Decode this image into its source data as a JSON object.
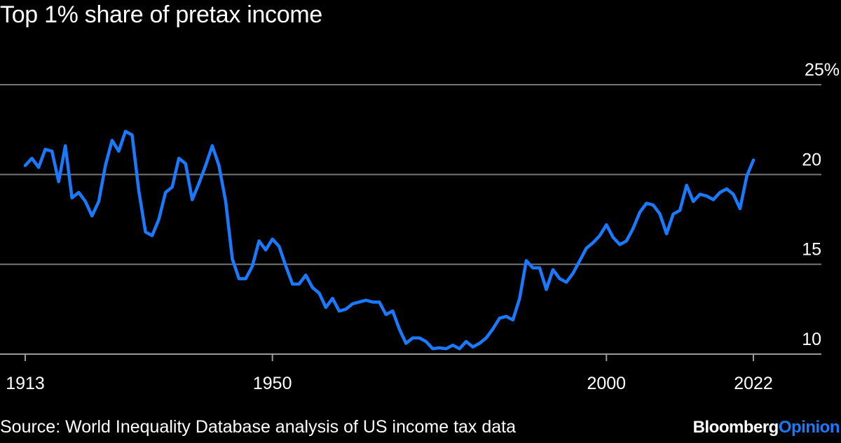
{
  "title": "Top 1% share of pretax income",
  "source": "Source: World Inequality Database analysis of US income tax data",
  "brand": {
    "name": "Bloomberg",
    "suffix": "Opinion"
  },
  "colors": {
    "background": "#000000",
    "line": "#1a7aff",
    "grid": "#777777",
    "text": "#ffffff"
  },
  "chart_data": {
    "type": "line",
    "title": "Top 1% share of pretax income",
    "ylim": [
      10,
      25
    ],
    "xlim": [
      1913,
      2022
    ],
    "y_ticks": [
      {
        "value": 25,
        "label": "25%"
      },
      {
        "value": 20,
        "label": "20"
      },
      {
        "value": 15,
        "label": "15"
      },
      {
        "value": 10,
        "label": "10"
      }
    ],
    "x_ticks": [
      {
        "value": 1913,
        "label": "1913"
      },
      {
        "value": 1950,
        "label": "1950"
      },
      {
        "value": 2000,
        "label": "2000"
      },
      {
        "value": 2022,
        "label": "2022"
      }
    ],
    "grid": true,
    "series": [
      {
        "x": [
          1913,
          1914,
          1915,
          1916,
          1917,
          1918,
          1919,
          1920,
          1921,
          1922,
          1923,
          1924,
          1925,
          1926,
          1927,
          1928,
          1929,
          1930,
          1931,
          1932,
          1933,
          1934,
          1935,
          1936,
          1937,
          1938,
          1939,
          1940,
          1941,
          1942,
          1943,
          1944,
          1945,
          1946,
          1947,
          1948,
          1949,
          1950,
          1951,
          1952,
          1953,
          1954,
          1955,
          1956,
          1957,
          1958,
          1959,
          1960,
          1961,
          1962,
          1963,
          1964,
          1965,
          1966,
          1967,
          1968,
          1969,
          1970,
          1971,
          1972,
          1973,
          1974,
          1975,
          1976,
          1977,
          1978,
          1979,
          1980,
          1981,
          1982,
          1983,
          1984,
          1985,
          1986,
          1987,
          1988,
          1989,
          1990,
          1991,
          1992,
          1993,
          1994,
          1995,
          1996,
          1997,
          1998,
          1999,
          2000,
          2001,
          2002,
          2003,
          2004,
          2005,
          2006,
          2007,
          2008,
          2009,
          2010,
          2011,
          2012,
          2013,
          2014,
          2015,
          2016,
          2017,
          2018,
          2019,
          2020,
          2021,
          2022
        ],
        "values": [
          20.5,
          20.9,
          20.4,
          21.4,
          21.3,
          19.6,
          21.6,
          18.7,
          19.0,
          18.5,
          17.7,
          18.5,
          20.5,
          21.9,
          21.3,
          22.4,
          22.2,
          19.1,
          16.8,
          16.6,
          17.5,
          19.0,
          19.3,
          20.9,
          20.6,
          18.6,
          19.5,
          20.5,
          21.6,
          20.5,
          18.5,
          15.3,
          14.2,
          14.2,
          14.9,
          16.3,
          15.8,
          16.4,
          16.0,
          14.9,
          13.9,
          13.9,
          14.4,
          13.7,
          13.4,
          12.6,
          13.1,
          12.4,
          12.5,
          12.8,
          12.9,
          13.0,
          12.9,
          12.9,
          12.2,
          12.4,
          11.4,
          10.6,
          10.9,
          10.9,
          10.7,
          10.3,
          10.35,
          10.3,
          10.5,
          10.3,
          10.7,
          10.4,
          10.6,
          10.9,
          11.4,
          12.0,
          12.1,
          11.9,
          13.1,
          15.2,
          14.8,
          14.8,
          13.6,
          14.7,
          14.2,
          14.0,
          14.5,
          15.2,
          15.9,
          16.2,
          16.6,
          17.2,
          16.5,
          16.1,
          16.3,
          17.0,
          17.9,
          18.4,
          18.3,
          17.8,
          16.7,
          17.8,
          18.0,
          19.4,
          18.5,
          18.9,
          18.8,
          18.6,
          19.0,
          19.2,
          18.9,
          18.1,
          19.9,
          20.8
        ]
      }
    ]
  }
}
